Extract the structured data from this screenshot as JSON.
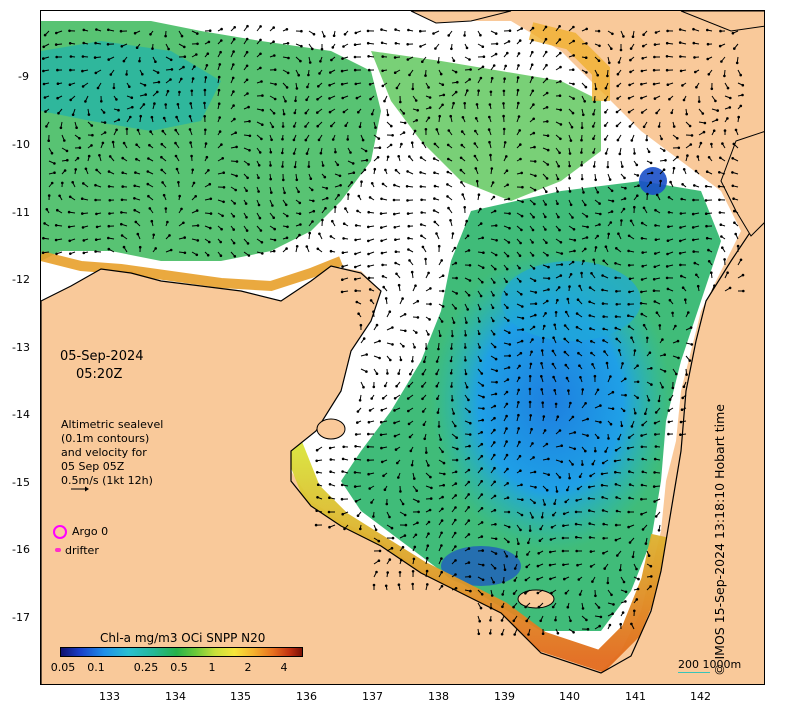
{
  "date_label": "05-Sep-2024",
  "time_label": "05:20Z",
  "altimetry_lines": [
    "Altimetric sealevel",
    "(0.1m contours)",
    "and velocity for",
    "05 Sep 05Z",
    "0.5m/s (1kt 12h)"
  ],
  "legend": {
    "argo": "Argo 0",
    "drifter": "drifter"
  },
  "colorbar": {
    "title": "Chl-a mg/m3 OCi SNPP N20",
    "ticks": [
      "0.05",
      "0.1",
      "0.25",
      "0.5",
      "1",
      "2",
      "4"
    ]
  },
  "scale_label": "200  1000m",
  "credit": "© IMOS 15-Sep-2024 13:18:10 Hobart time",
  "x_ticks": [
    "133",
    "134",
    "135",
    "136",
    "137",
    "138",
    "139",
    "140",
    "141",
    "142"
  ],
  "y_ticks": [
    "-9",
    "-10",
    "-11",
    "-12",
    "-13",
    "-14",
    "-15",
    "-16",
    "-17"
  ],
  "colors": {
    "land": "#f9c99a",
    "no_data": "#ffffff",
    "argo": "#ff00ff",
    "drifter": "#ff2fc8",
    "arrows": "#000000"
  }
}
